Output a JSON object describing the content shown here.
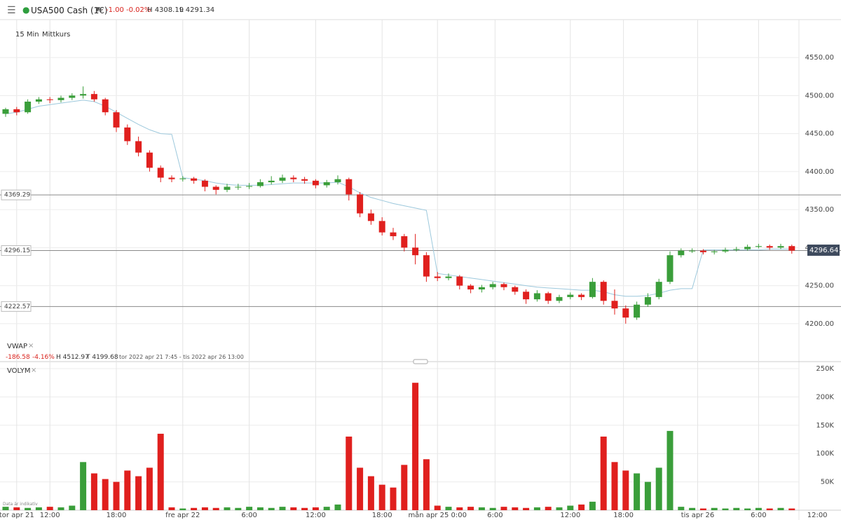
{
  "header": {
    "instrument": "USA500 Cash (1€)",
    "change": "-1.00",
    "change_pct": "-0.02%",
    "high": "H 4308.19",
    "low": "L 4291.34"
  },
  "toolbar": {
    "interval": "15 Min",
    "price_type": "Mittkurs"
  },
  "vwap_info": {
    "name": "VWAP",
    "change": "-186.58",
    "change_pct": "-4.16%",
    "high": "H 4512.97",
    "low": "T 4199.68",
    "range": "tor 2022 apr 21 7:45 - tis 2022 apr 26 13:00"
  },
  "volume_info": {
    "name": "VOLYM"
  },
  "disclaimer": "Data är indikativ",
  "chart_data": [
    {
      "type": "candlestick",
      "ylim": [
        4151,
        4598
      ],
      "yticks": [
        {
          "value": 4200,
          "label": "4200.00"
        },
        {
          "value": 4250,
          "label": "4250.00"
        },
        {
          "value": 4300,
          "label": "4300.00"
        },
        {
          "value": 4350,
          "label": "4350.00"
        },
        {
          "value": 4400,
          "label": "4400.00"
        },
        {
          "value": 4450,
          "label": "4450.00"
        },
        {
          "value": 4500,
          "label": "4500.00"
        },
        {
          "value": 4550,
          "label": "4550.00"
        }
      ],
      "levels": [
        4369.29,
        4296.15,
        4222.57
      ],
      "last_price": 4296.64,
      "up_color": "#3a9e3a",
      "down_color": "#e0201e",
      "vwap_color": "#9cc8dc",
      "candles": [
        [
          4476,
          4484,
          4472,
          4482
        ],
        [
          4482,
          4485,
          4474,
          4478
        ],
        [
          4478,
          4495,
          4476,
          4492
        ],
        [
          4492,
          4498,
          4489,
          4495
        ],
        [
          4495,
          4498,
          4490,
          4494
        ],
        [
          4494,
          4500,
          4491,
          4497
        ],
        [
          4497,
          4503,
          4494,
          4500
        ],
        [
          4500,
          4512,
          4496,
          4502
        ],
        [
          4502,
          4506,
          4492,
          4495
        ],
        [
          4495,
          4497,
          4474,
          4478
        ],
        [
          4478,
          4481,
          4452,
          4458
        ],
        [
          4458,
          4462,
          4435,
          4440
        ],
        [
          4440,
          4446,
          4420,
          4425
        ],
        [
          4425,
          4428,
          4400,
          4405
        ],
        [
          4405,
          4408,
          4386,
          4392
        ],
        [
          4392,
          4395,
          4386,
          4390
        ],
        [
          4390,
          4394,
          4387,
          4391
        ],
        [
          4391,
          4393,
          4384,
          4388
        ],
        [
          4388,
          4390,
          4374,
          4380
        ],
        [
          4380,
          4382,
          4370,
          4376
        ],
        [
          4376,
          4384,
          4373,
          4380
        ],
        [
          4380,
          4384,
          4376,
          4380
        ],
        [
          4380,
          4385,
          4377,
          4381
        ],
        [
          4381,
          4390,
          4379,
          4386
        ],
        [
          4386,
          4394,
          4383,
          4388
        ],
        [
          4388,
          4396,
          4385,
          4392
        ],
        [
          4392,
          4395,
          4386,
          4390
        ],
        [
          4390,
          4393,
          4384,
          4388
        ],
        [
          4388,
          4390,
          4378,
          4382
        ],
        [
          4382,
          4389,
          4379,
          4386
        ],
        [
          4386,
          4395,
          4383,
          4390
        ],
        [
          4390,
          4392,
          4362,
          4370
        ],
        [
          4370,
          4373,
          4340,
          4345
        ],
        [
          4345,
          4350,
          4330,
          4335
        ],
        [
          4335,
          4340,
          4316,
          4320
        ],
        [
          4320,
          4326,
          4310,
          4315
        ],
        [
          4315,
          4318,
          4295,
          4300
        ],
        [
          4300,
          4318,
          4278,
          4290
        ],
        [
          4290,
          4294,
          4255,
          4262
        ],
        [
          4262,
          4268,
          4256,
          4260
        ],
        [
          4260,
          4266,
          4257,
          4262
        ],
        [
          4262,
          4264,
          4245,
          4250
        ],
        [
          4250,
          4252,
          4240,
          4245
        ],
        [
          4245,
          4251,
          4241,
          4248
        ],
        [
          4248,
          4255,
          4245,
          4252
        ],
        [
          4252,
          4254,
          4244,
          4248
        ],
        [
          4248,
          4250,
          4238,
          4242
        ],
        [
          4242,
          4245,
          4226,
          4232
        ],
        [
          4232,
          4244,
          4229,
          4240
        ],
        [
          4240,
          4242,
          4226,
          4230
        ],
        [
          4230,
          4238,
          4227,
          4235
        ],
        [
          4235,
          4241,
          4232,
          4238
        ],
        [
          4238,
          4240,
          4231,
          4235
        ],
        [
          4235,
          4260,
          4233,
          4255
        ],
        [
          4255,
          4257,
          4225,
          4230
        ],
        [
          4230,
          4245,
          4212,
          4220
        ],
        [
          4220,
          4224,
          4200,
          4208
        ],
        [
          4208,
          4229,
          4205,
          4225
        ],
        [
          4225,
          4240,
          4222,
          4235
        ],
        [
          4235,
          4259,
          4232,
          4255
        ],
        [
          4255,
          4295,
          4252,
          4290
        ],
        [
          4290,
          4299,
          4287,
          4296
        ],
        [
          4296,
          4299,
          4293,
          4296
        ],
        [
          4296,
          4298,
          4291,
          4294
        ],
        [
          4294,
          4297,
          4291,
          4295
        ],
        [
          4295,
          4300,
          4293,
          4297
        ],
        [
          4297,
          4301,
          4295,
          4298
        ],
        [
          4298,
          4304,
          4296,
          4301
        ],
        [
          4301,
          4305,
          4299,
          4302
        ],
        [
          4302,
          4304,
          4297,
          4300
        ],
        [
          4300,
          4305,
          4298,
          4302
        ],
        [
          4302,
          4304,
          4292,
          4296
        ]
      ],
      "vwap": [
        4476,
        4478,
        4482,
        4486,
        4488,
        4490,
        4492,
        4494,
        4492,
        4486,
        4478,
        4470,
        4462,
        4455,
        4450,
        4449,
        4392,
        4390,
        4388,
        4385,
        4383,
        4382,
        4382,
        4382,
        4383,
        4384,
        4385,
        4385,
        4385,
        4385,
        4386,
        4380,
        4372,
        4366,
        4362,
        4358,
        4355,
        4352,
        4349,
        4266,
        4264,
        4262,
        4260,
        4258,
        4256,
        4254,
        4252,
        4250,
        4248,
        4247,
        4246,
        4245,
        4244,
        4244,
        4242,
        4238,
        4236,
        4236,
        4237,
        4240,
        4244,
        4246,
        4246,
        4297,
        4297,
        4297,
        4297,
        4297,
        4297,
        4298,
        4298,
        4298
      ]
    },
    {
      "type": "volume",
      "ylim": [
        0,
        250000
      ],
      "yticks": [
        {
          "value": 50000,
          "label": "50K"
        },
        {
          "value": 100000,
          "label": "100K"
        },
        {
          "value": 150000,
          "label": "150K"
        },
        {
          "value": 200000,
          "label": "200K"
        },
        {
          "value": 250000,
          "label": "250K"
        }
      ],
      "values": [
        6000,
        5000,
        4000,
        5000,
        6000,
        5000,
        8000,
        85000,
        65000,
        55000,
        50000,
        70000,
        60000,
        75000,
        135000,
        5000,
        3000,
        4000,
        5000,
        4000,
        5000,
        4000,
        6000,
        5000,
        4000,
        6000,
        5000,
        4000,
        5000,
        6000,
        10000,
        130000,
        75000,
        60000,
        45000,
        40000,
        80000,
        225000,
        90000,
        8000,
        6000,
        5000,
        6000,
        5000,
        4000,
        6000,
        5000,
        4000,
        5000,
        6000,
        5000,
        8000,
        10000,
        15000,
        130000,
        85000,
        70000,
        65000,
        50000,
        75000,
        140000,
        6000,
        4000,
        3000,
        4000,
        3000,
        4000,
        3000,
        4000,
        3000,
        4000,
        3000
      ],
      "xticks": [
        {
          "value": 1,
          "label": "tor apr 21"
        },
        {
          "value": 4,
          "label": "12:00"
        },
        {
          "value": 10,
          "label": "18:00"
        },
        {
          "value": 16,
          "label": "fre apr 22"
        },
        {
          "value": 22,
          "label": "6:00"
        },
        {
          "value": 28,
          "label": "12:00"
        },
        {
          "value": 34,
          "label": "18:00"
        },
        {
          "value": 39,
          "label": "mån apr 25 0:00"
        },
        {
          "value": 44.2,
          "label": "6:00"
        },
        {
          "value": 51,
          "label": "12:00"
        },
        {
          "value": 55.8,
          "label": "18:00"
        },
        {
          "value": 62.5,
          "label": "tis apr 26"
        },
        {
          "value": 68,
          "label": "6:00"
        },
        {
          "value": 73.3,
          "label": "12:00"
        }
      ]
    }
  ]
}
